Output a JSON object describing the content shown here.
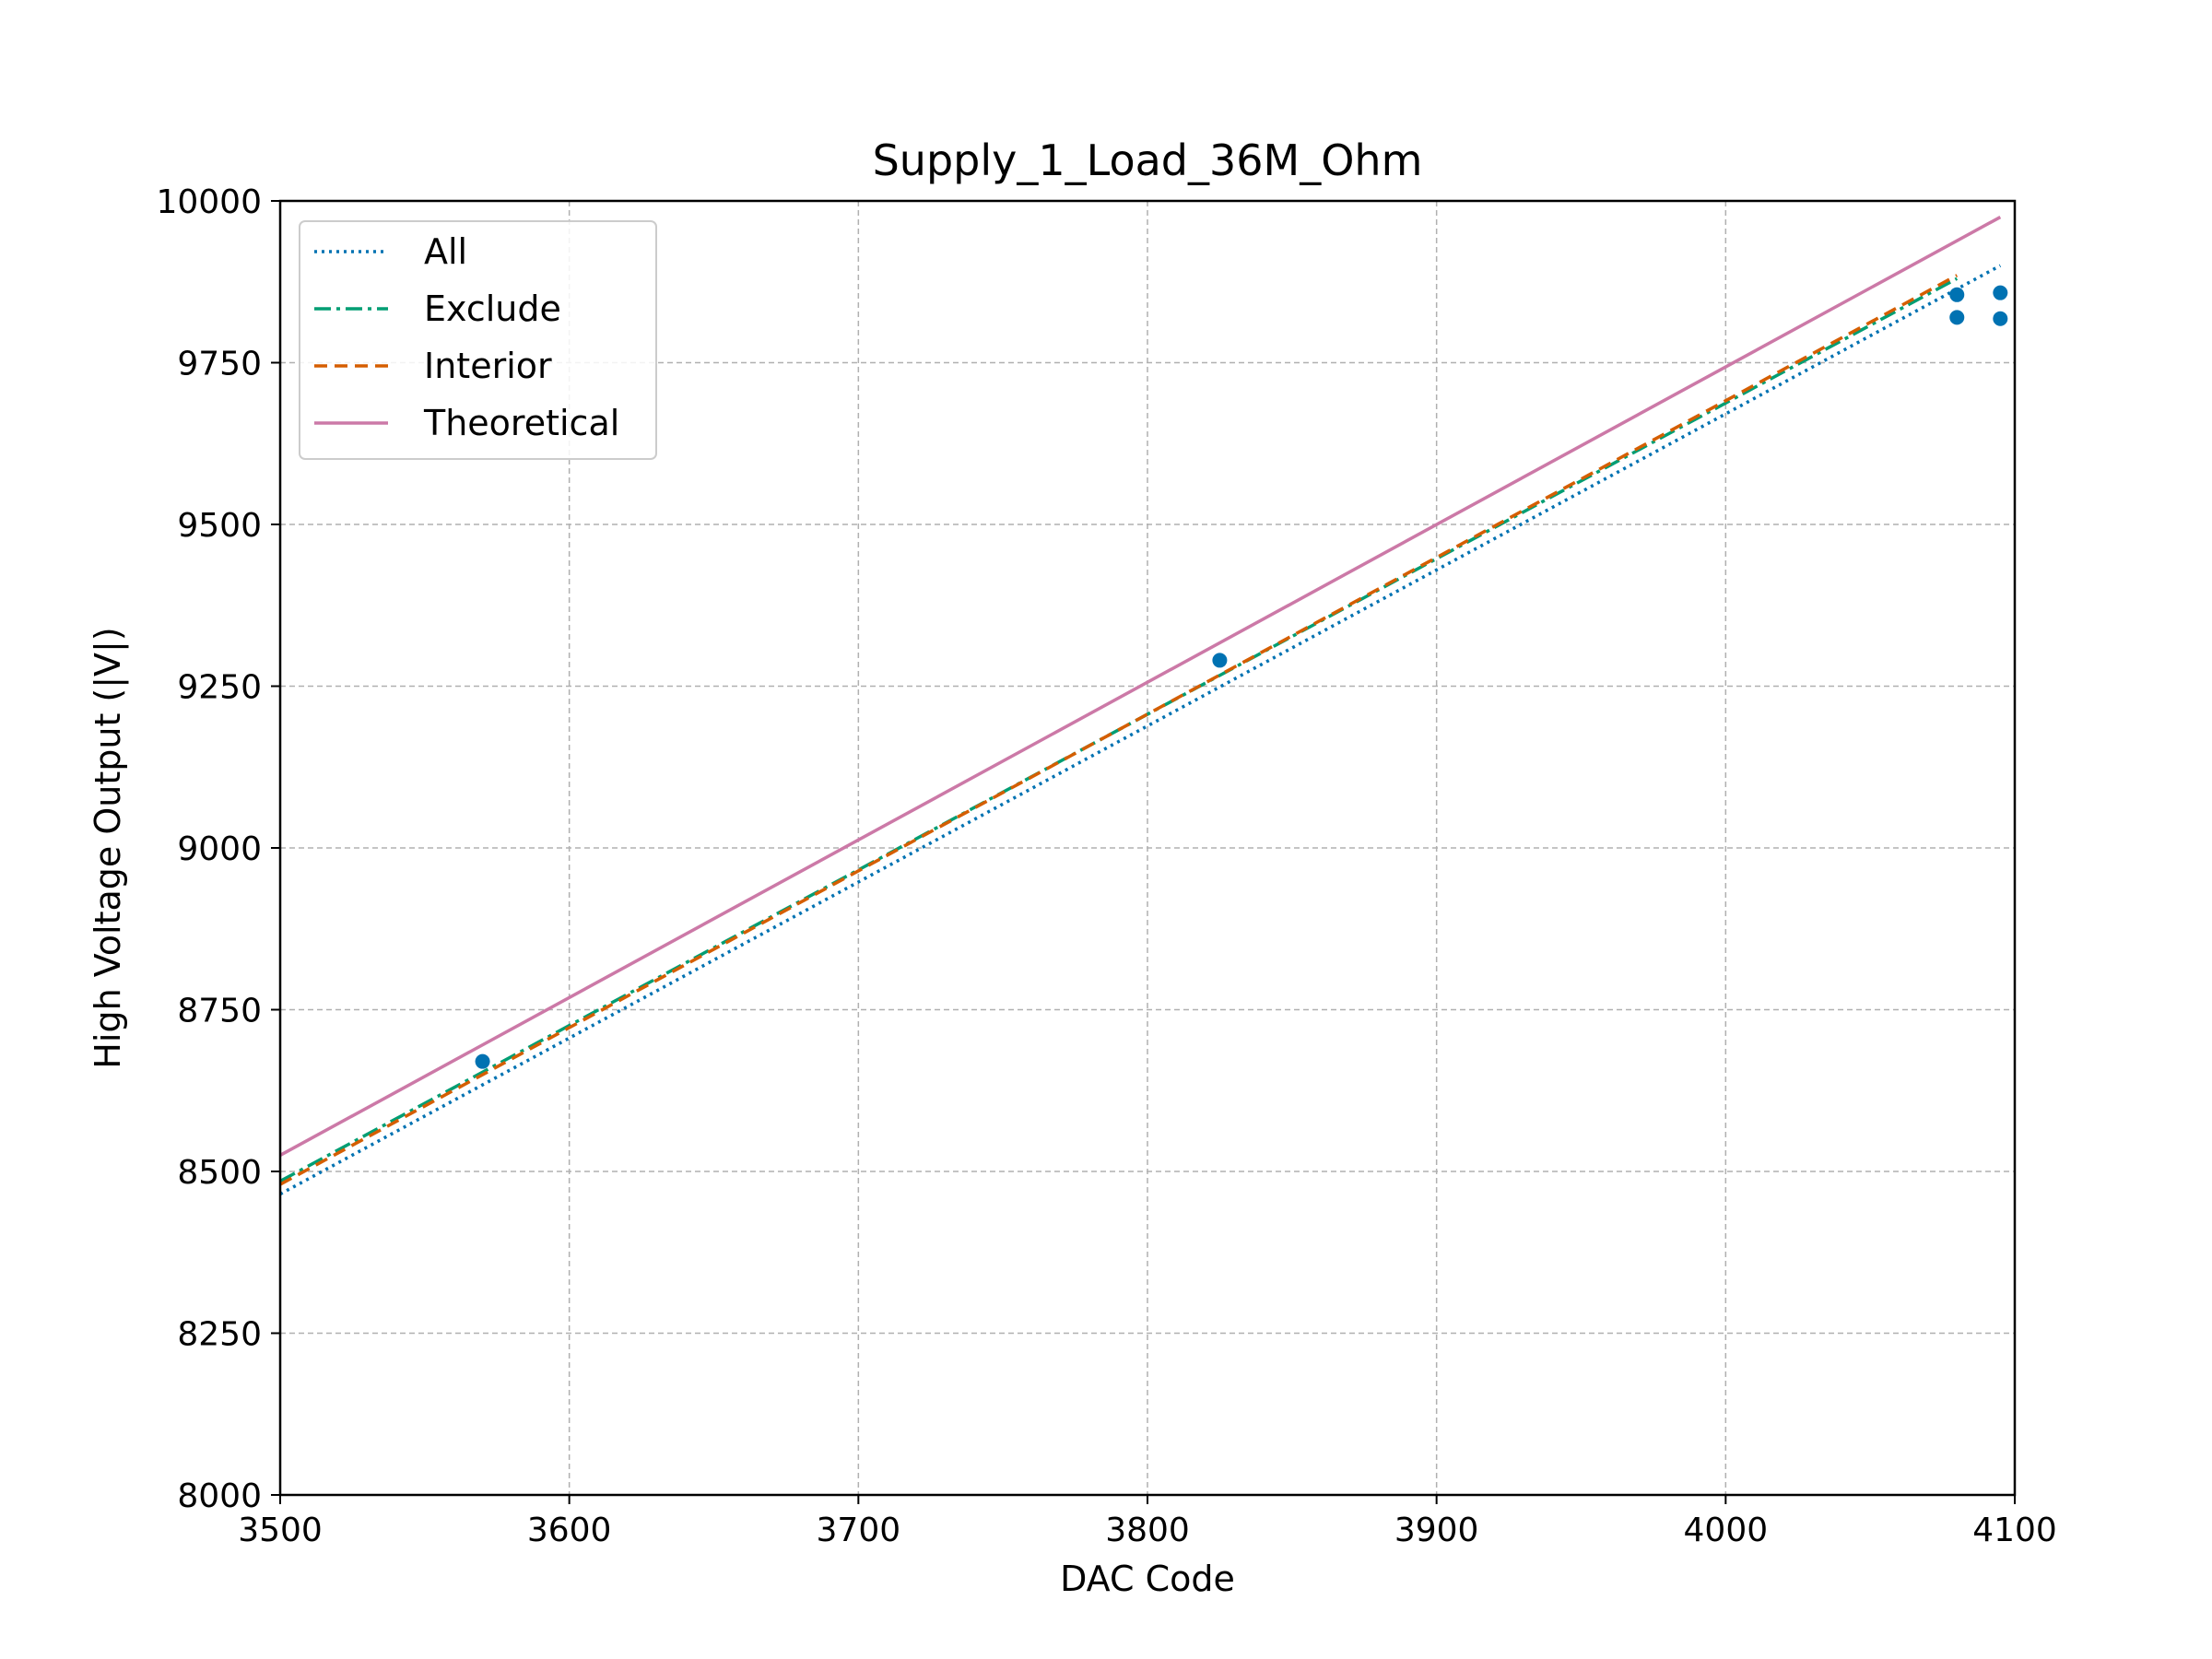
{
  "chart_data": {
    "type": "line",
    "title": "Supply_1_Load_36M_Ohm",
    "xlabel": "DAC Code",
    "ylabel": "High Voltage Output (|V|)",
    "xlim": [
      3500,
      4100
    ],
    "ylim": [
      8000,
      10000
    ],
    "xticks": [
      3500,
      3600,
      3700,
      3800,
      3900,
      4000,
      4100
    ],
    "yticks": [
      8000,
      8250,
      8500,
      8750,
      9000,
      9250,
      9500,
      9750,
      10000
    ],
    "grid": true,
    "legend_position": "top-left",
    "series": [
      {
        "name": "All",
        "style": "dotted",
        "color": "#0072B2",
        "x": [
          3500,
          4095
        ],
        "y": [
          8465,
          9900
        ]
      },
      {
        "name": "Exclude",
        "style": "dashdot",
        "color": "#009E73",
        "x": [
          3500,
          4080
        ],
        "y": [
          8485,
          9880
        ]
      },
      {
        "name": "Interior",
        "style": "dashed",
        "color": "#D55E00",
        "x": [
          3500,
          4080
        ],
        "y": [
          8480,
          9885
        ]
      },
      {
        "name": "Theoretical",
        "style": "solid",
        "color": "#CC79A7",
        "x": [
          3500,
          4095
        ],
        "y": [
          8525,
          9975
        ]
      }
    ],
    "points": {
      "color": "#0072B2",
      "x": [
        3570,
        3825,
        4080,
        4080,
        4095,
        4095
      ],
      "y": [
        8670,
        9290,
        9855,
        9820,
        9858,
        9818
      ]
    }
  }
}
